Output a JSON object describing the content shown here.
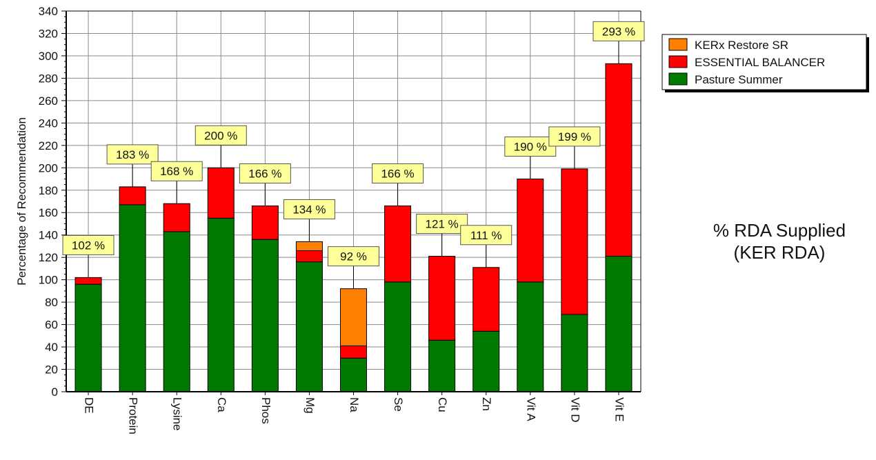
{
  "chart_data": {
    "type": "bar",
    "stacked": true,
    "categories": [
      "DE",
      "Protein",
      "Lysine",
      "Ca",
      "Phos",
      "Mg",
      "Na",
      "Se",
      "Cu",
      "Zn",
      "Vit A",
      "Vit D",
      "Vit E"
    ],
    "series": [
      {
        "name": "Pasture Summer",
        "color": "#007a00",
        "values": [
          96,
          167,
          143,
          155,
          136,
          116,
          30,
          98,
          46,
          54,
          98,
          69,
          121
        ]
      },
      {
        "name": "ESSENTIAL BALANCER",
        "color": "#ff0000",
        "values": [
          6,
          16,
          25,
          45,
          30,
          10,
          11,
          68,
          75,
          57,
          92,
          130,
          172
        ]
      },
      {
        "name": "KERx Restore SR",
        "color": "#ff8000",
        "values": [
          0,
          0,
          0,
          0,
          0,
          8,
          51,
          0,
          0,
          0,
          0,
          0,
          0
        ]
      }
    ],
    "totals": [
      "102 %",
      "183 %",
      "168 %",
      "200 %",
      "166 %",
      "134 %",
      "92 %",
      "166 %",
      "121 %",
      "111 %",
      "190 %",
      "199 %",
      "293 %"
    ],
    "ylabel": "Percentage of Recommendation",
    "xlabel": "",
    "ylim": [
      0,
      340
    ],
    "yticks": [
      0,
      20,
      40,
      60,
      80,
      100,
      120,
      140,
      160,
      180,
      200,
      220,
      240,
      260,
      280,
      300,
      320,
      340
    ],
    "grid": true,
    "legend_position": "top-right",
    "legend_order": [
      "KERx Restore SR",
      "ESSENTIAL BALANCER",
      "Pasture Summer"
    ],
    "label_background": "#ffff99"
  },
  "side_title": {
    "line1": "% RDA Supplied",
    "line2": "(KER RDA)"
  }
}
